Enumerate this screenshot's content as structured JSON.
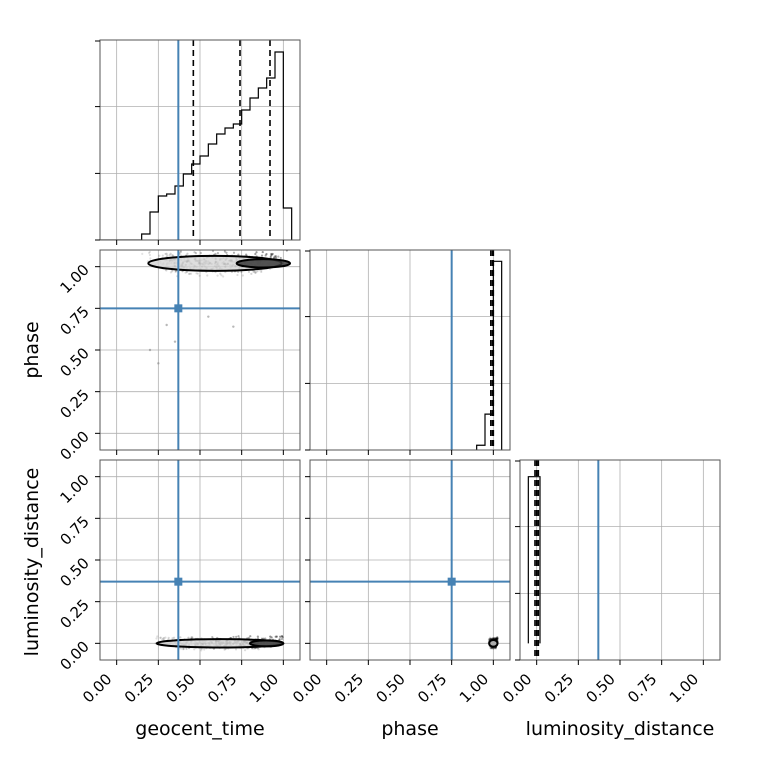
{
  "chart_data": {
    "type": "corner",
    "parameters": [
      "geocent_time",
      "phase",
      "luminosity_distance"
    ],
    "tick_values": [
      0.0,
      0.25,
      0.5,
      0.75,
      1.0
    ],
    "tick_labels": [
      "0.00",
      "0.25",
      "0.50",
      "0.75",
      "1.00"
    ],
    "truth_color": "#4682b4",
    "truths": {
      "geocent_time": 0.37,
      "phase": 0.75,
      "luminosity_distance": 0.37
    },
    "grid": true,
    "histograms": [
      {
        "parameter": "geocent_time",
        "xlim": [
          -0.1,
          1.1
        ],
        "bin_edges": [
          0.15,
          0.2,
          0.25,
          0.3,
          0.35,
          0.4,
          0.45,
          0.5,
          0.55,
          0.6,
          0.65,
          0.7,
          0.75,
          0.8,
          0.85,
          0.9,
          0.95,
          1.0,
          1.05
        ],
        "counts": [
          0.03,
          0.14,
          0.22,
          0.23,
          0.27,
          0.33,
          0.38,
          0.42,
          0.48,
          0.53,
          0.56,
          0.58,
          0.65,
          0.71,
          0.76,
          0.81,
          0.94,
          0.16
        ],
        "ylim": [
          0,
          1.0
        ],
        "quantiles": [
          0.46,
          0.74,
          0.92
        ]
      },
      {
        "parameter": "phase",
        "xlim": [
          -0.1,
          1.1
        ],
        "bin_edges": [
          0.9,
          0.95,
          1.0,
          1.05
        ],
        "counts": [
          0.025,
          0.19,
          1.0
        ],
        "ylim": [
          0,
          1.06
        ],
        "quantiles": [
          0.985,
          0.995,
          1.0
        ]
      },
      {
        "parameter": "luminosity_distance",
        "xlim": [
          -0.1,
          1.1
        ],
        "bin_edges": [
          -0.05,
          -0.01,
          0.02
        ],
        "counts": [
          1.0,
          1.0
        ],
        "ylim": [
          -0.1,
          1.1
        ],
        "quantiles": [
          -0.01,
          0.0,
          0.01
        ]
      }
    ],
    "scatter": [
      {
        "x_param": "geocent_time",
        "y_param": "phase",
        "xlim": [
          -0.1,
          1.1
        ],
        "ylim": [
          -0.1,
          1.1
        ],
        "density": "concentrated near phase 1.00, spread across geocent_time 0.15–1.00",
        "contours": [
          {
            "center": [
              0.59,
              1.02
            ],
            "half_width": 0.4,
            "half_height": 0.045
          },
          {
            "center": [
              0.88,
              1.02
            ],
            "half_width": 0.16,
            "half_height": 0.025
          }
        ],
        "outliers": [
          [
            0.2,
            0.5
          ],
          [
            0.25,
            0.42
          ],
          [
            0.35,
            0.55
          ],
          [
            0.7,
            0.64
          ],
          [
            0.3,
            0.65
          ],
          [
            0.55,
            0.7
          ]
        ]
      },
      {
        "x_param": "geocent_time",
        "y_param": "luminosity_distance",
        "xlim": [
          -0.1,
          1.1
        ],
        "ylim": [
          -0.1,
          1.1
        ],
        "density": "concentrated near luminosity_distance 0.00, increasing toward geocent_time 1.00",
        "contours": [
          {
            "center": [
              0.62,
              0.0
            ],
            "half_width": 0.38,
            "half_height": 0.025
          },
          {
            "center": [
              0.9,
              0.0
            ],
            "half_width": 0.1,
            "half_height": 0.015
          }
        ]
      },
      {
        "x_param": "phase",
        "y_param": "luminosity_distance",
        "xlim": [
          -0.1,
          1.1
        ],
        "ylim": [
          -0.1,
          1.1
        ],
        "density": "concentrated at phase 1.00, luminosity_distance 0.00",
        "contours": [
          {
            "center": [
              1.0,
              0.0
            ],
            "half_width": 0.025,
            "half_height": 0.02
          }
        ]
      }
    ]
  }
}
